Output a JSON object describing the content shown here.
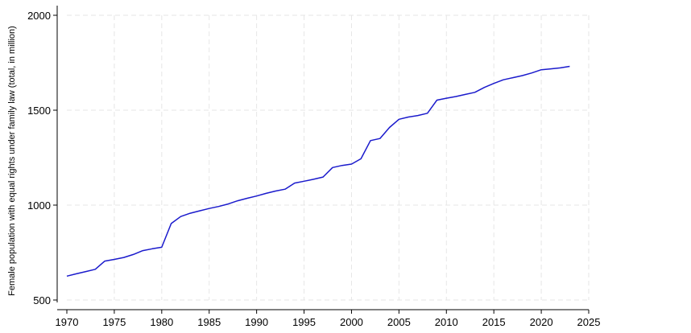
{
  "chart_data": {
    "type": "line",
    "title": "",
    "xlabel": "",
    "ylabel": "Female population with equal rights under family law (total, in million)",
    "xlim": [
      1970,
      2025
    ],
    "ylim": [
      500,
      2000
    ],
    "x_ticks": [
      1970,
      1975,
      1980,
      1985,
      1990,
      1995,
      2000,
      2005,
      2010,
      2015,
      2020,
      2025
    ],
    "y_ticks": [
      500,
      1000,
      1500,
      2000
    ],
    "grid": true,
    "legend": "none",
    "line_color": "#1a1acc",
    "series": [
      {
        "x": [
          1970,
          1971,
          1972,
          1973,
          1974,
          1975,
          1976,
          1977,
          1978,
          1979,
          1980,
          1981,
          1982,
          1983,
          1984,
          1985,
          1986,
          1987,
          1988,
          1989,
          1990,
          1991,
          1992,
          1993,
          1994,
          1995,
          1996,
          1997,
          1998,
          1999,
          2000,
          2001,
          2002,
          2003,
          2004,
          2005,
          2006,
          2007,
          2008,
          2009,
          2010,
          2011,
          2012,
          2013,
          2014,
          2015,
          2016,
          2017,
          2018,
          2019,
          2020,
          2021,
          2022,
          2023
        ],
        "values": [
          626,
          638,
          650,
          662,
          705,
          714,
          724,
          740,
          760,
          770,
          778,
          903,
          940,
          957,
          970,
          982,
          993,
          1006,
          1023,
          1036,
          1048,
          1062,
          1074,
          1084,
          1116,
          1126,
          1136,
          1148,
          1198,
          1209,
          1216,
          1244,
          1340,
          1351,
          1409,
          1452,
          1464,
          1472,
          1484,
          1553,
          1563,
          1572,
          1583,
          1594,
          1620,
          1641,
          1660,
          1671,
          1682,
          1696,
          1713,
          1718,
          1723,
          1731
        ]
      }
    ]
  }
}
